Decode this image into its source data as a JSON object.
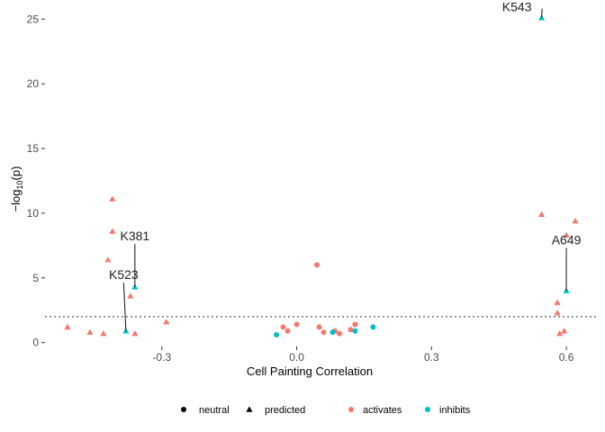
{
  "chart_data": {
    "type": "scatter",
    "xlabel": "Cell Painting Correlation",
    "ylabel": "-log10(p)",
    "xlim": [
      -0.56,
      0.67
    ],
    "ylim": [
      -0.3,
      26.2
    ],
    "x_ticks": [
      -0.3,
      0.0,
      0.3,
      0.6
    ],
    "x_tick_labels": [
      "-0.3",
      "0.0",
      "0.3",
      "0.6"
    ],
    "y_ticks": [
      0,
      5,
      10,
      15,
      20,
      25
    ],
    "y_tick_labels": [
      "0",
      "5",
      "10",
      "15",
      "20",
      "25"
    ],
    "threshold_y": 2.0,
    "grid": false,
    "legend_position": "bottom",
    "colors": {
      "activates": "#f8766d",
      "inhibits": "#00bfc4",
      "neutral_key": "#000000"
    },
    "legend": {
      "shape_items": [
        {
          "label": "neutral",
          "shape": "circle"
        },
        {
          "label": "predicted",
          "shape": "triangle"
        }
      ],
      "color_items": [
        {
          "label": "activates",
          "color": "#f8766d"
        },
        {
          "label": "inhibits",
          "color": "#00bfc4"
        }
      ]
    },
    "points": [
      {
        "x": -0.51,
        "y": 1.2,
        "shape": "triangle",
        "group": "activates"
      },
      {
        "x": -0.46,
        "y": 0.8,
        "shape": "triangle",
        "group": "activates"
      },
      {
        "x": -0.43,
        "y": 0.7,
        "shape": "triangle",
        "group": "activates"
      },
      {
        "x": -0.42,
        "y": 6.4,
        "shape": "triangle",
        "group": "activates"
      },
      {
        "x": -0.41,
        "y": 11.1,
        "shape": "triangle",
        "group": "activates"
      },
      {
        "x": -0.41,
        "y": 8.6,
        "shape": "triangle",
        "group": "activates"
      },
      {
        "x": -0.37,
        "y": 3.6,
        "shape": "triangle",
        "group": "activates"
      },
      {
        "x": -0.36,
        "y": 0.7,
        "shape": "triangle",
        "group": "activates"
      },
      {
        "x": -0.29,
        "y": 1.6,
        "shape": "triangle",
        "group": "activates"
      },
      {
        "x": -0.38,
        "y": 0.9,
        "shape": "triangle",
        "group": "inhibits"
      },
      {
        "x": -0.36,
        "y": 4.3,
        "shape": "triangle",
        "group": "inhibits"
      },
      {
        "x": -0.03,
        "y": 1.2,
        "shape": "circle",
        "group": "activates"
      },
      {
        "x": -0.02,
        "y": 0.9,
        "shape": "circle",
        "group": "activates"
      },
      {
        "x": 0.0,
        "y": 1.4,
        "shape": "circle",
        "group": "activates"
      },
      {
        "x": 0.045,
        "y": 6.0,
        "shape": "circle",
        "group": "activates"
      },
      {
        "x": 0.05,
        "y": 1.2,
        "shape": "circle",
        "group": "activates"
      },
      {
        "x": 0.06,
        "y": 0.8,
        "shape": "circle",
        "group": "activates"
      },
      {
        "x": 0.085,
        "y": 0.9,
        "shape": "circle",
        "group": "activates"
      },
      {
        "x": 0.095,
        "y": 0.7,
        "shape": "circle",
        "group": "activates"
      },
      {
        "x": 0.12,
        "y": 1.0,
        "shape": "circle",
        "group": "activates"
      },
      {
        "x": 0.13,
        "y": 1.4,
        "shape": "circle",
        "group": "activates"
      },
      {
        "x": -0.045,
        "y": 0.6,
        "shape": "circle",
        "group": "inhibits"
      },
      {
        "x": 0.08,
        "y": 0.8,
        "shape": "circle",
        "group": "inhibits"
      },
      {
        "x": 0.13,
        "y": 0.9,
        "shape": "circle",
        "group": "inhibits"
      },
      {
        "x": 0.17,
        "y": 1.2,
        "shape": "circle",
        "group": "inhibits"
      },
      {
        "x": 0.545,
        "y": 9.9,
        "shape": "triangle",
        "group": "activates"
      },
      {
        "x": 0.58,
        "y": 3.1,
        "shape": "triangle",
        "group": "activates"
      },
      {
        "x": 0.58,
        "y": 2.3,
        "shape": "triangle",
        "group": "activates"
      },
      {
        "x": 0.585,
        "y": 0.7,
        "shape": "triangle",
        "group": "activates"
      },
      {
        "x": 0.595,
        "y": 0.9,
        "shape": "triangle",
        "group": "activates"
      },
      {
        "x": 0.6,
        "y": 8.3,
        "shape": "triangle",
        "group": "activates"
      },
      {
        "x": 0.62,
        "y": 9.4,
        "shape": "triangle",
        "group": "activates"
      },
      {
        "x": 0.545,
        "y": 25.1,
        "shape": "triangle",
        "group": "inhibits"
      },
      {
        "x": 0.6,
        "y": 4.0,
        "shape": "triangle",
        "group": "inhibits"
      }
    ],
    "annotations": [
      {
        "label": "K543",
        "point": [
          0.545,
          25.1
        ],
        "text_at": [
          0.49,
          25.6
        ]
      },
      {
        "label": "K381",
        "point": [
          -0.36,
          4.3
        ],
        "text_at": [
          -0.36,
          7.9
        ]
      },
      {
        "label": "K523",
        "point": [
          -0.38,
          0.9
        ],
        "text_at": [
          -0.385,
          4.9
        ]
      },
      {
        "label": "A649",
        "point": [
          0.6,
          4.0
        ],
        "text_at": [
          0.6,
          7.6
        ]
      }
    ]
  }
}
